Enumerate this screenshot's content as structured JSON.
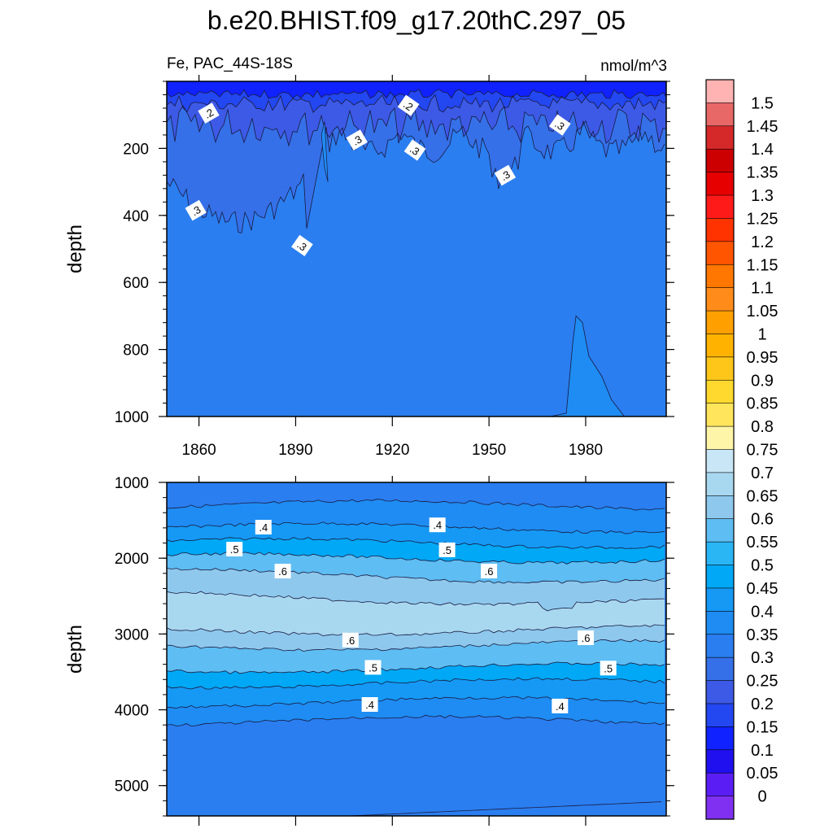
{
  "title": "b.e20.BHIST.f09_g17.20thC.297_05",
  "chart_data": [
    {
      "type": "heatmap",
      "panel": "upper",
      "left_label": "Fe, PAC_44S-18S",
      "right_label": "nmol/m^3",
      "xlabel": "",
      "ylabel": "depth",
      "xlim": [
        1850,
        2005
      ],
      "ylim": [
        1000,
        0
      ],
      "x_ticks": [
        {
          "value": 1860,
          "label": "1860"
        },
        {
          "value": 1890,
          "label": "1890"
        },
        {
          "value": 1920,
          "label": "1920"
        },
        {
          "value": 1950,
          "label": "1950"
        },
        {
          "value": 1980,
          "label": "1980"
        }
      ],
      "y_ticks": [
        {
          "value": 200,
          "label": "200"
        },
        {
          "value": 400,
          "label": "400"
        },
        {
          "value": 600,
          "label": "600"
        },
        {
          "value": 800,
          "label": "800"
        },
        {
          "value": 1000,
          "label": "1000"
        }
      ],
      "contour_labels": [
        {
          "x": 1863,
          "y": 95,
          "text": ".2"
        },
        {
          "x": 1925,
          "y": 72,
          "text": ".2"
        },
        {
          "x": 1909,
          "y": 175,
          "text": ".3"
        },
        {
          "x": 1927,
          "y": 205,
          "text": ".3"
        },
        {
          "x": 1955,
          "y": 280,
          "text": ".3"
        },
        {
          "x": 1972,
          "y": 130,
          "text": ".3"
        },
        {
          "x": 1859,
          "y": 385,
          "text": ".3"
        },
        {
          "x": 1892,
          "y": 490,
          "text": ".3"
        }
      ]
    },
    {
      "type": "heatmap",
      "panel": "lower",
      "xlabel": "",
      "ylabel": "depth",
      "xlim": [
        1850,
        2005
      ],
      "ylim": [
        5400,
        1000
      ],
      "y_ticks": [
        {
          "value": 1000,
          "label": "1000"
        },
        {
          "value": 2000,
          "label": "2000"
        },
        {
          "value": 3000,
          "label": "3000"
        },
        {
          "value": 4000,
          "label": "4000"
        },
        {
          "value": 5000,
          "label": "5000"
        }
      ],
      "contour_labels": [
        {
          "x": 1880,
          "y": 1590,
          "text": ".4"
        },
        {
          "x": 1934,
          "y": 1560,
          "text": ".4"
        },
        {
          "x": 1871,
          "y": 1880,
          "text": ".5"
        },
        {
          "x": 1937,
          "y": 1890,
          "text": ".5"
        },
        {
          "x": 1886,
          "y": 2170,
          "text": ".6"
        },
        {
          "x": 1950,
          "y": 2170,
          "text": ".6"
        },
        {
          "x": 1907,
          "y": 3080,
          "text": ".6"
        },
        {
          "x": 1980,
          "y": 3050,
          "text": ".6"
        },
        {
          "x": 1914,
          "y": 3440,
          "text": ".5"
        },
        {
          "x": 1987,
          "y": 3450,
          "text": ".5"
        },
        {
          "x": 1913,
          "y": 3930,
          "text": ".4"
        },
        {
          "x": 1972,
          "y": 3950,
          "text": ".4"
        }
      ]
    }
  ],
  "colorbar": {
    "levels": [
      "1.5",
      "1.45",
      "1.4",
      "1.35",
      "1.3",
      "1.25",
      "1.2",
      "1.15",
      "1.1",
      "1.05",
      "1",
      "0.95",
      "0.9",
      "0.85",
      "0.8",
      "0.75",
      "0.7",
      "0.65",
      "0.6",
      "0.55",
      "0.5",
      "0.45",
      "0.4",
      "0.35",
      "0.3",
      "0.25",
      "0.2",
      "0.15",
      "0.1",
      "0.05",
      "0"
    ],
    "colors": [
      "#ffb3b3",
      "#e86868",
      "#d52929",
      "#cc0000",
      "#e60000",
      "#ff1a1a",
      "#ff3300",
      "#ff5500",
      "#ff7700",
      "#ff8c1a",
      "#ffa000",
      "#ffb300",
      "#ffc61a",
      "#ffd92e",
      "#ffe55c",
      "#fff5a8",
      "#c8e6f5",
      "#a8d8f0",
      "#8ec8ed",
      "#5ebdf2",
      "#2ab5f5",
      "#00a8f5",
      "#1599f5",
      "#1e8cf2",
      "#2a7ef0",
      "#3570e8",
      "#3d5ae6",
      "#2347f0",
      "#0f22ff",
      "#2010f0",
      "#5a1ef5",
      "#8030f0"
    ]
  },
  "colors": {
    "upper_shallow": "#0f22ff",
    "upper_0_15": "#2347f0",
    "upper_0_2": "#3d5ae6",
    "upper_0_25": "#3570e8",
    "upper_0_3": "#2a7ef0",
    "upper_0_35": "#1e8cf2",
    "deep_0_35": "#2a7ef0",
    "deep_0_4": "#1e8cf2",
    "deep_0_45": "#1599f5",
    "deep_0_5": "#00a8f5",
    "deep_0_55": "#5ebdf2",
    "deep_0_6": "#8ec8ed",
    "deep_0_65": "#a8d8f0"
  }
}
